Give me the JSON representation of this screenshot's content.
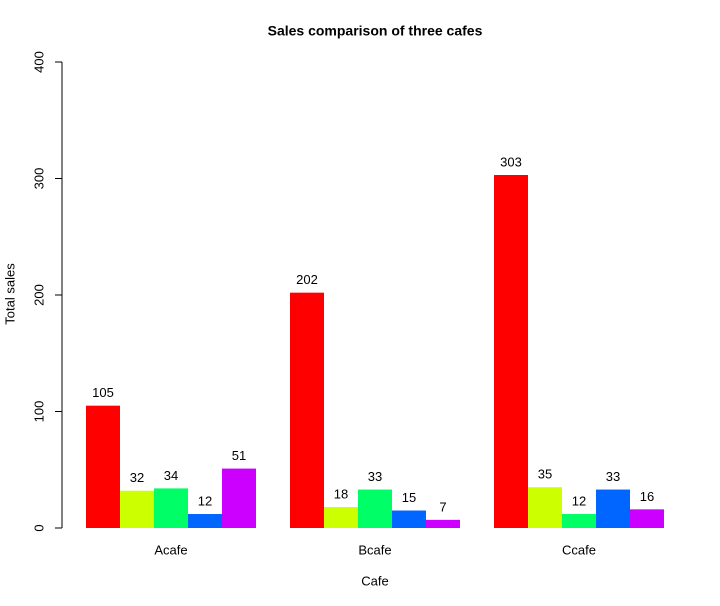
{
  "chart_data": {
    "type": "bar",
    "title": "Sales comparison of three cafes",
    "x_label": "Cafe",
    "y_label": "Total sales",
    "categories": [
      "Acafe",
      "Bcafe",
      "Ccafe"
    ],
    "series": [
      {
        "color": "#FF0000",
        "values": [
          105,
          202,
          303
        ]
      },
      {
        "color": "#CCFF00",
        "values": [
          32,
          18,
          35
        ]
      },
      {
        "color": "#00FF66",
        "values": [
          34,
          33,
          12
        ]
      },
      {
        "color": "#0066FF",
        "values": [
          12,
          15,
          33
        ]
      },
      {
        "color": "#CC00FF",
        "values": [
          51,
          7,
          16
        ]
      }
    ],
    "ylim": [
      0,
      400
    ],
    "yticks": [
      0,
      100,
      200,
      300,
      400
    ]
  }
}
